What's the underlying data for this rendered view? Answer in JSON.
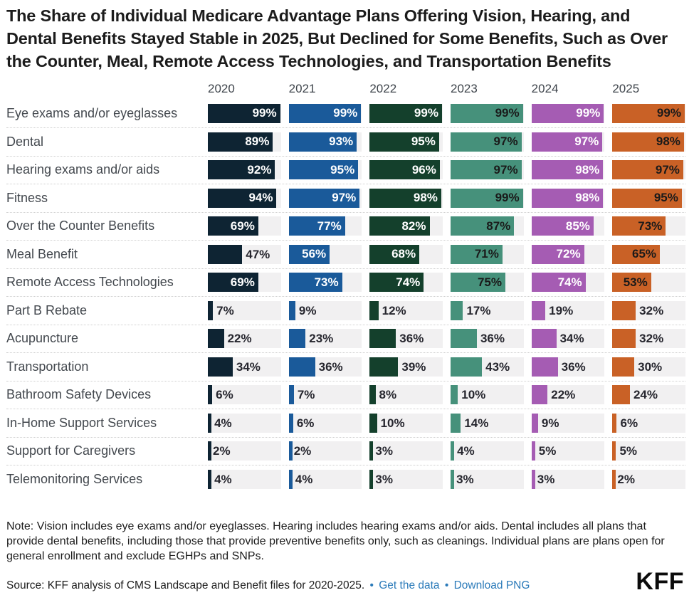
{
  "title": "The Share of Individual Medicare Advantage Plans Offering Vision, Hearing, and Dental Benefits Stayed Stable in 2025, But Declined for Some Benefits, Such as Over the Counter, Meal, Remote Access Technologies, and Transportation Benefits",
  "chart_data": {
    "type": "bar",
    "orientation": "horizontal",
    "unit": "%",
    "xlim": [
      0,
      100
    ],
    "track_color": "#f1f0f1",
    "inside_label_threshold": 50,
    "outside_label_color": "#26262e",
    "categories": [
      "Eye exams and/or eyeglasses",
      "Dental",
      "Hearing exams and/or aids",
      "Fitness",
      "Over the Counter Benefits",
      "Meal Benefit",
      "Remote Access Technologies",
      "Part B Rebate",
      "Acupuncture",
      "Transportation",
      "Bathroom Safety Devices",
      "In-Home Support Services",
      "Support for Caregivers",
      "Telemonitoring Services"
    ],
    "series": [
      {
        "name": "2020",
        "color": "#0e2433",
        "text_color": "#ffffff",
        "values": [
          99,
          89,
          92,
          94,
          69,
          47,
          69,
          7,
          22,
          34,
          6,
          4,
          2,
          4
        ]
      },
      {
        "name": "2021",
        "color": "#1a5a9a",
        "text_color": "#ffffff",
        "values": [
          99,
          93,
          95,
          97,
          77,
          56,
          73,
          9,
          23,
          36,
          7,
          6,
          2,
          4
        ]
      },
      {
        "name": "2022",
        "color": "#14402c",
        "text_color": "#ffffff",
        "values": [
          99,
          95,
          96,
          98,
          82,
          68,
          74,
          12,
          36,
          39,
          8,
          10,
          3,
          3
        ]
      },
      {
        "name": "2023",
        "color": "#46917b",
        "text_color": "#1a1a1a",
        "values": [
          99,
          97,
          97,
          99,
          87,
          71,
          75,
          17,
          36,
          43,
          10,
          14,
          4,
          3
        ]
      },
      {
        "name": "2024",
        "color": "#a55cb3",
        "text_color": "#ffffff",
        "values": [
          99,
          97,
          98,
          98,
          85,
          72,
          74,
          19,
          34,
          36,
          22,
          9,
          5,
          3
        ]
      },
      {
        "name": "2025",
        "color": "#c96126",
        "text_color": "#1a1a1a",
        "values": [
          99,
          98,
          97,
          95,
          73,
          65,
          53,
          32,
          32,
          30,
          24,
          6,
          5,
          2
        ]
      }
    ]
  },
  "note": "Note: Vision includes eye exams and/or eyeglasses. Hearing includes hearing exams and/or aids. Dental includes all plans that provide dental benefits, including those that provide preventive benefits only, such as cleanings. Individual plans are plans open for general enrollment and exclude EGHPs and SNPs.",
  "source": {
    "prefix": "Source: KFF analysis of CMS Landscape and Benefit files for 2020-2025.",
    "separator": "•",
    "link_color": "#2a7ab9",
    "links": [
      {
        "label": "Get the data"
      },
      {
        "label": "Download PNG"
      }
    ]
  },
  "logo": "KFF"
}
